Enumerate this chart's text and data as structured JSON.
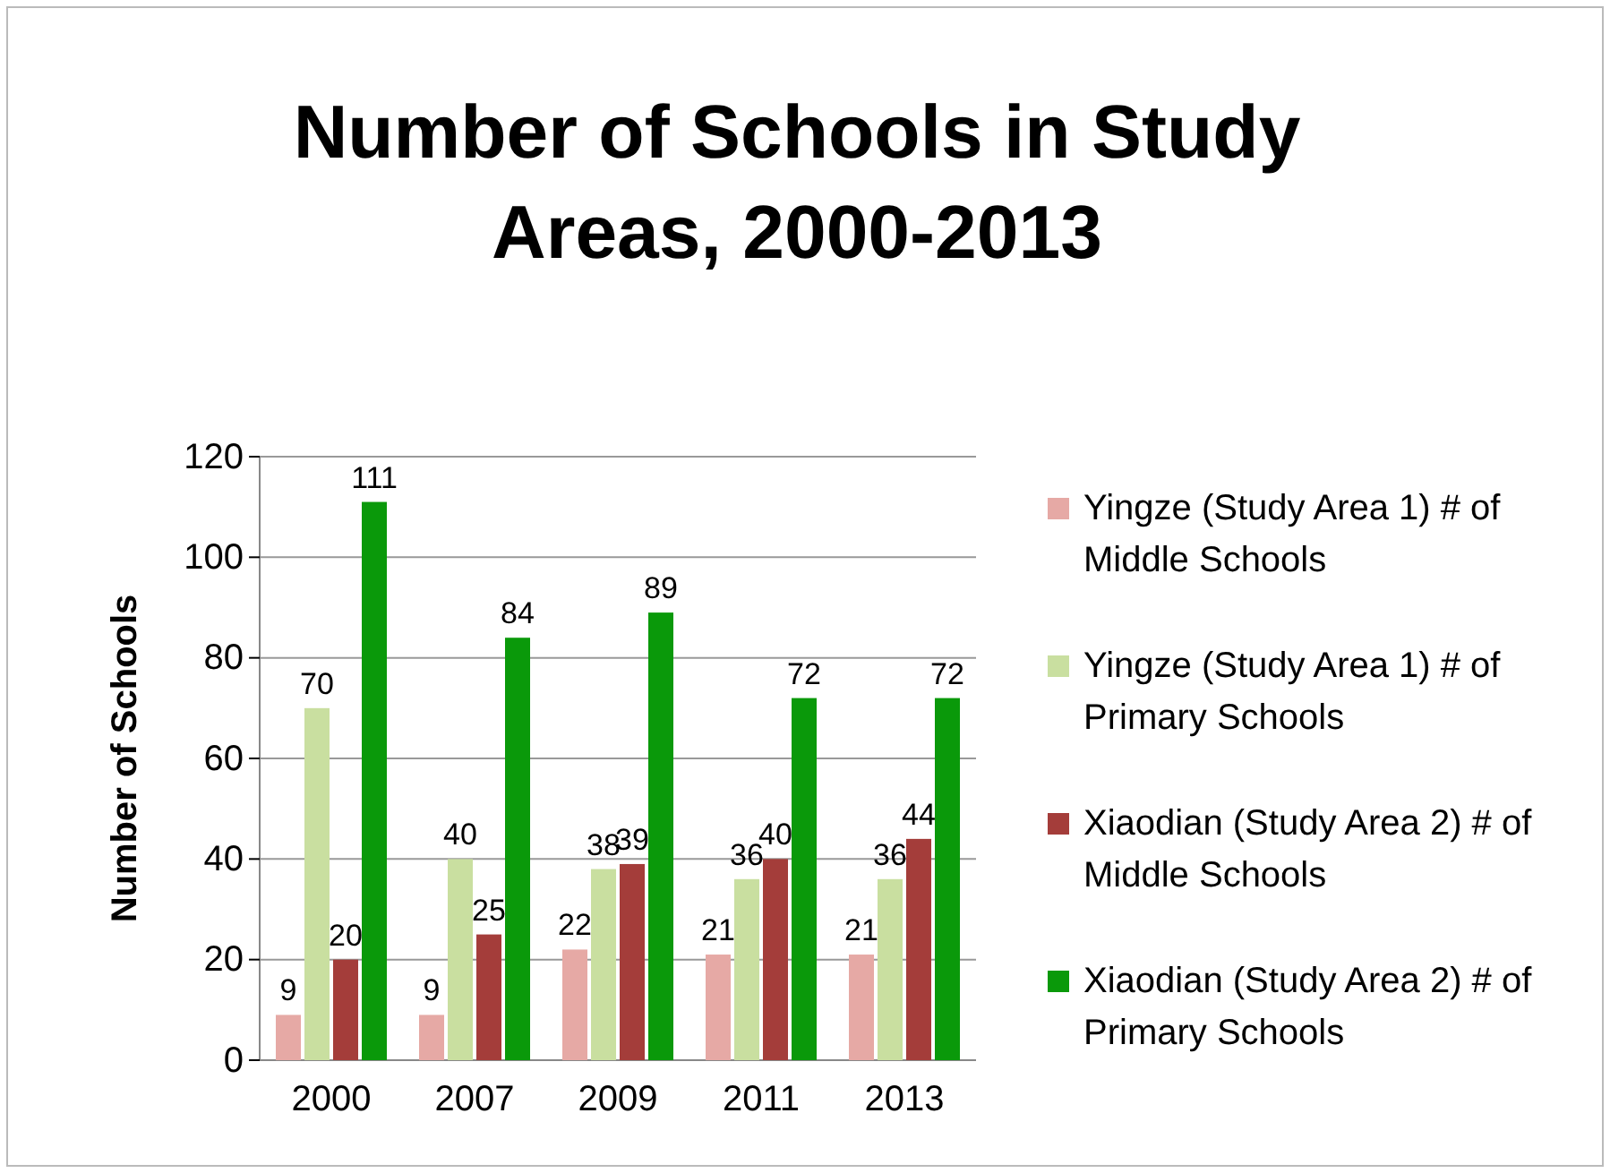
{
  "chart_data": {
    "type": "bar",
    "title": "Number of Schools in Study Areas, 2000-2013",
    "ylabel": "Number of Schools",
    "categories": [
      "2000",
      "2007",
      "2009",
      "2011",
      "2013"
    ],
    "series": [
      {
        "name": "Yingze (Study Area 1) # of Middle Schools",
        "color": "#e6a9a5",
        "values": [
          9,
          9,
          22,
          21,
          21
        ]
      },
      {
        "name": "Yingze (Study Area 1) # of Primary Schools",
        "color": "#c9dfa0",
        "values": [
          70,
          40,
          38,
          36,
          36
        ]
      },
      {
        "name": "Xiaodian (Study Area 2) # of Middle Schools",
        "color": "#a43d3a",
        "values": [
          20,
          25,
          39,
          40,
          44
        ]
      },
      {
        "name": "Xiaodian (Study Area 2) # of Primary Schools",
        "color": "#0a990a",
        "values": [
          111,
          84,
          89,
          72,
          72
        ]
      }
    ],
    "ylim": [
      0,
      120
    ],
    "yticks": [
      0,
      20,
      40,
      60,
      80,
      100,
      120
    ],
    "grid": "y",
    "legend": "right",
    "data_labels": true
  }
}
